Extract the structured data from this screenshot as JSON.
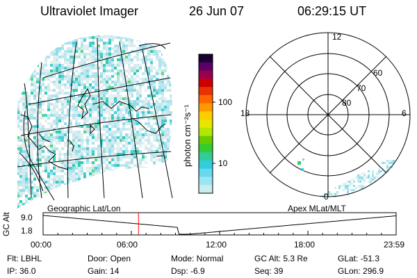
{
  "header": {
    "instrument": "Ultraviolet Imager",
    "date": "26 Jun 07",
    "time": "06:29:15 UT"
  },
  "colorbar": {
    "unit_label": "photon cm⁻²s⁻¹",
    "ticks": [
      "100",
      "10"
    ],
    "colors": [
      "#1a0033",
      "#5a0066",
      "#99004d",
      "#cc0000",
      "#e63300",
      "#ff6600",
      "#ff9900",
      "#ffcc00",
      "#e6e600",
      "#b3e600",
      "#66cc00",
      "#33cc33",
      "#33cc99",
      "#33ccdd",
      "#66d9ee",
      "#99e6f2",
      "#c8ecf0"
    ]
  },
  "polar": {
    "mlt_labels": {
      "top": "12",
      "left": "18",
      "right": "6",
      "bottom": "0"
    },
    "lat_labels": [
      "60",
      "70",
      "80"
    ]
  },
  "timeline": {
    "left_title": "Geographic Lat/Lon",
    "right_title": "Apex  MLat/MLT",
    "axis_title": "GC Alt",
    "y_ticks": [
      "9.0",
      "1.8"
    ],
    "x_ticks": [
      "00:00",
      "06:00",
      "12:00",
      "18:00",
      "23:59"
    ],
    "cursor_time": "06:29:15",
    "cursor_fraction": 0.2703,
    "cursor_color": "#ff0000"
  },
  "info": {
    "flt": "Flt: LBHL",
    "ip": "IP: 36.0",
    "door": "Door: Open",
    "gain": "Gain: 14",
    "mode": "Mode: Normal",
    "dsp": "Dsp:    -6.9",
    "gcalt": "GC Alt: 5.3 Re",
    "seq": "Seq: 39",
    "glat": "GLat: -51.3",
    "glon": "GLon: 296.9"
  }
}
